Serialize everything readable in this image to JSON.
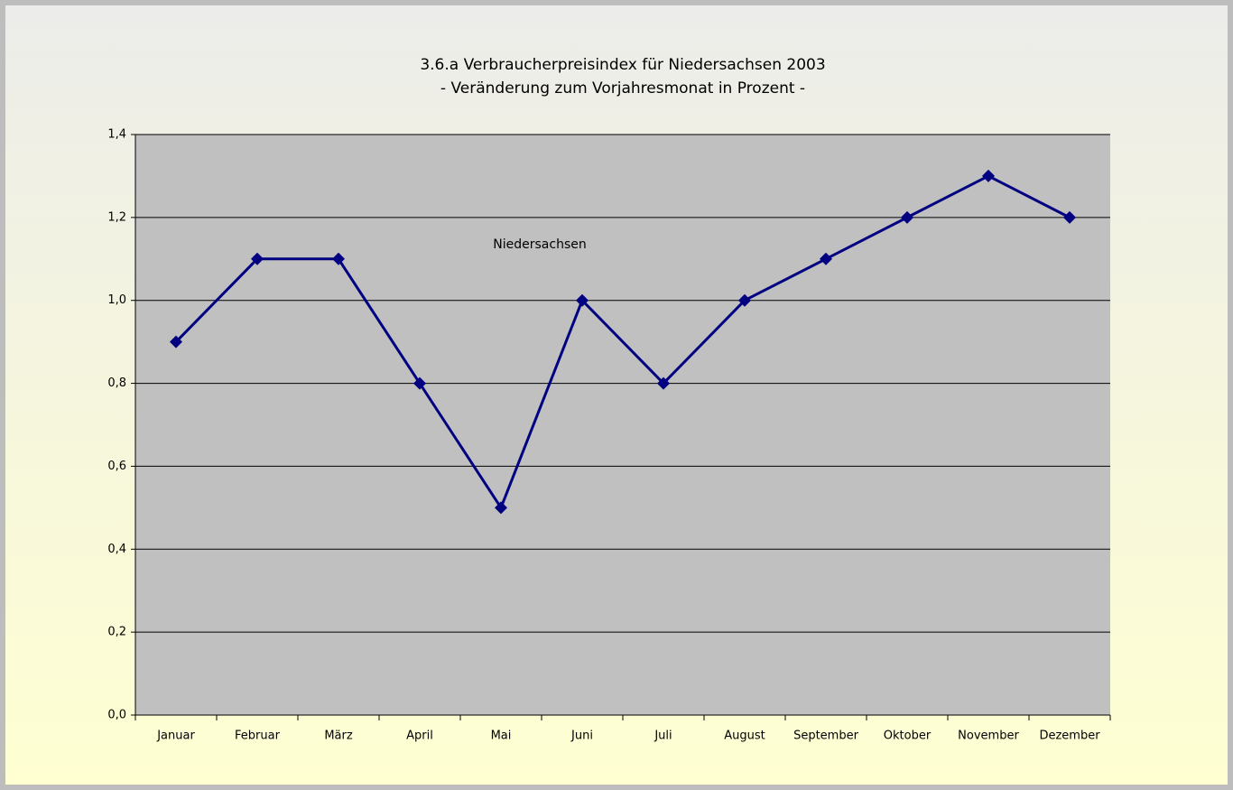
{
  "chart_data": {
    "type": "line",
    "title": "3.6.a Verbraucherpreisindex für Niedersachsen 2003",
    "subtitle": "- Veränderung zum Vorjahresmonat in Prozent -",
    "categories": [
      "Januar",
      "Februar",
      "März",
      "April",
      "Mai",
      "Juni",
      "Juli",
      "August",
      "September",
      "Oktober",
      "November",
      "Dezember"
    ],
    "series": [
      {
        "name": "Niedersachsen",
        "color": "#000080",
        "values": [
          0.9,
          1.1,
          1.1,
          0.8,
          0.5,
          1.0,
          0.8,
          1.0,
          1.1,
          1.2,
          1.3,
          1.2
        ]
      }
    ],
    "ylim": [
      0,
      1.4
    ],
    "yticks": [
      {
        "value": 0,
        "label": "0,0"
      },
      {
        "value": 0.2,
        "label": "0,2"
      },
      {
        "value": 0.4,
        "label": "0,4"
      },
      {
        "value": 0.6,
        "label": "0,6"
      },
      {
        "value": 0.8,
        "label": "0,8"
      },
      {
        "value": 1.0,
        "label": "1,0"
      },
      {
        "value": 1.2,
        "label": "1,2"
      },
      {
        "value": 1.4,
        "label": "1,4"
      }
    ],
    "grid": true
  }
}
